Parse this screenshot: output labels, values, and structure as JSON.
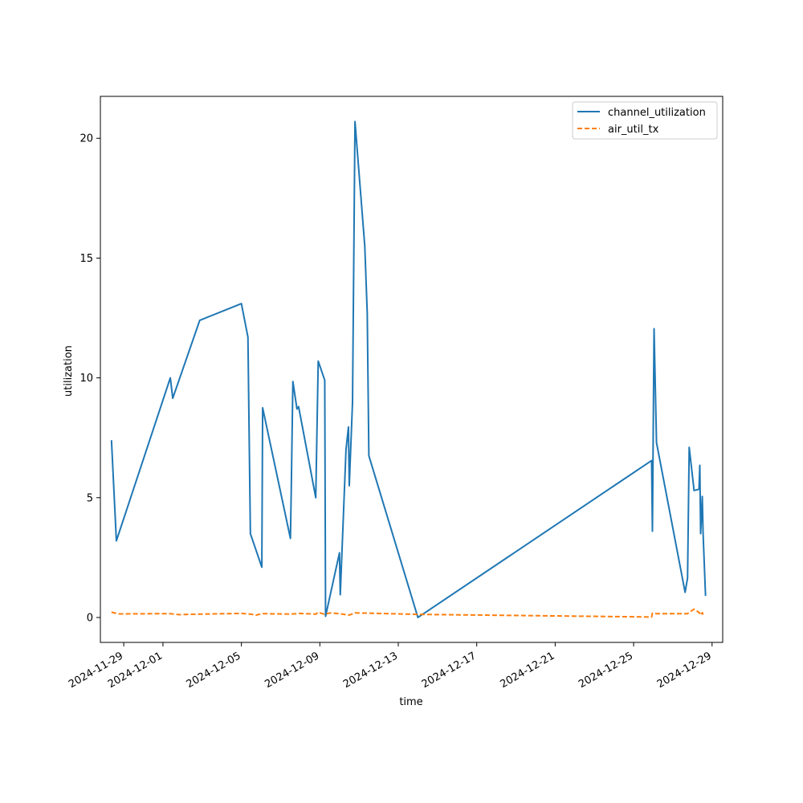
{
  "chart_data": {
    "type": "line",
    "xlabel": "time",
    "ylabel": "utilization",
    "x_axis_type": "date",
    "xlim": [
      "2024-11-27T19:25",
      "2024-12-29T13:00"
    ],
    "ylim": [
      -1.04,
      21.75
    ],
    "x_ticks": [
      "2024-11-29",
      "2024-12-01",
      "2024-12-05",
      "2024-12-09",
      "2024-12-13",
      "2024-12-17",
      "2024-12-21",
      "2024-12-25",
      "2024-12-29"
    ],
    "y_ticks": [
      0,
      5,
      10,
      15,
      20
    ],
    "grid": false,
    "legend_position": "top-right",
    "series": [
      {
        "name": "channel_utilization",
        "color": "#1f77b4",
        "dash": "solid",
        "points": [
          [
            "2024-11-28T09:00",
            7.4
          ],
          [
            "2024-11-28T15:00",
            3.2
          ],
          [
            "2024-12-01T09:00",
            10.0
          ],
          [
            "2024-12-01T12:00",
            9.15
          ],
          [
            "2024-12-02T21:00",
            12.4
          ],
          [
            "2024-12-05T00:00",
            13.1
          ],
          [
            "2024-12-05T08:00",
            11.7
          ],
          [
            "2024-12-05T11:00",
            3.5
          ],
          [
            "2024-12-06T01:00",
            2.1
          ],
          [
            "2024-12-06T02:00",
            8.75
          ],
          [
            "2024-12-07T12:00",
            3.3
          ],
          [
            "2024-12-07T13:00",
            5.3
          ],
          [
            "2024-12-07T15:00",
            9.85
          ],
          [
            "2024-12-07T20:00",
            8.7
          ],
          [
            "2024-12-07T22:00",
            8.8
          ],
          [
            "2024-12-08T19:00",
            5.0
          ],
          [
            "2024-12-08T22:00",
            10.7
          ],
          [
            "2024-12-09T06:00",
            9.9
          ],
          [
            "2024-12-09T07:00",
            0.05
          ],
          [
            "2024-12-10T00:00",
            2.7
          ],
          [
            "2024-12-10T01:00",
            0.95
          ],
          [
            "2024-12-10T08:00",
            7.0
          ],
          [
            "2024-12-10T11:00",
            7.95
          ],
          [
            "2024-12-10T12:00",
            5.5
          ],
          [
            "2024-12-10T16:00",
            9.0
          ],
          [
            "2024-12-10T19:00",
            20.7
          ],
          [
            "2024-12-11T07:00",
            15.5
          ],
          [
            "2024-12-11T10:00",
            12.7
          ],
          [
            "2024-12-11T12:00",
            6.75
          ],
          [
            "2024-12-14T00:00",
            0.0
          ],
          [
            "2024-12-25T22:00",
            6.55
          ],
          [
            "2024-12-25T23:00",
            3.6
          ],
          [
            "2024-12-26T01:00",
            12.05
          ],
          [
            "2024-12-26T04:00",
            7.3
          ],
          [
            "2024-12-27T15:00",
            1.05
          ],
          [
            "2024-12-27T18:00",
            1.65
          ],
          [
            "2024-12-27T20:00",
            7.1
          ],
          [
            "2024-12-28T02:00",
            5.3
          ],
          [
            "2024-12-28T08:00",
            5.35
          ],
          [
            "2024-12-28T09:00",
            6.35
          ],
          [
            "2024-12-28T10:00",
            3.5
          ],
          [
            "2024-12-28T12:00",
            5.05
          ],
          [
            "2024-12-28T13:00",
            3.5
          ],
          [
            "2024-12-28T16:00",
            0.9
          ]
        ]
      },
      {
        "name": "air_util_tx",
        "color": "#ff7f0e",
        "dash": "dashed",
        "points": [
          [
            "2024-11-28T09:00",
            0.22
          ],
          [
            "2024-11-28T18:00",
            0.15
          ],
          [
            "2024-12-01T09:00",
            0.16
          ],
          [
            "2024-12-01T19:00",
            0.12
          ],
          [
            "2024-12-02T21:00",
            0.14
          ],
          [
            "2024-12-05T00:00",
            0.17
          ],
          [
            "2024-12-05T11:00",
            0.14
          ],
          [
            "2024-12-05T18:00",
            0.1
          ],
          [
            "2024-12-06T01:00",
            0.16
          ],
          [
            "2024-12-07T12:00",
            0.14
          ],
          [
            "2024-12-08T00:00",
            0.17
          ],
          [
            "2024-12-08T19:00",
            0.14
          ],
          [
            "2024-12-08T22:00",
            0.22
          ],
          [
            "2024-12-09T06:00",
            0.13
          ],
          [
            "2024-12-09T12:00",
            0.19
          ],
          [
            "2024-12-10T00:00",
            0.16
          ],
          [
            "2024-12-10T12:00",
            0.1
          ],
          [
            "2024-12-10T19:00",
            0.19
          ],
          [
            "2024-12-11T12:00",
            0.18
          ],
          [
            "2024-12-14T00:00",
            0.13
          ],
          [
            "2024-12-25T22:00",
            0.02
          ],
          [
            "2024-12-25T23:00",
            0.18
          ],
          [
            "2024-12-26T04:00",
            0.16
          ],
          [
            "2024-12-27T18:00",
            0.16
          ],
          [
            "2024-12-28T02:00",
            0.35
          ],
          [
            "2024-12-28T09:00",
            0.18
          ],
          [
            "2024-12-28T10:00",
            0.1
          ],
          [
            "2024-12-28T12:00",
            0.2
          ],
          [
            "2024-12-28T13:00",
            0.12
          ]
        ]
      }
    ]
  }
}
